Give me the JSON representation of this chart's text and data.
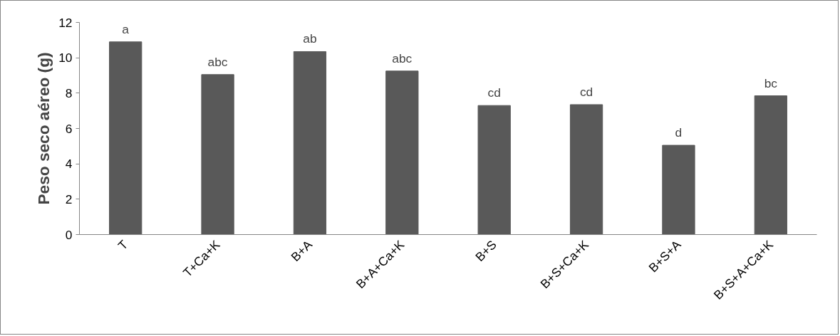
{
  "chart_data": {
    "type": "bar",
    "ylabel": "Peso seco aéreo (g)",
    "categories": [
      "T",
      "T+Ca+K",
      "B+A",
      "B+A+Ca+K",
      "B+S",
      "B+S+Ca+K",
      "B+S+A",
      "B+S+A+Ca+K"
    ],
    "values": [
      10.9,
      9.05,
      10.35,
      9.25,
      7.3,
      7.35,
      5.05,
      7.85
    ],
    "color": "#595959",
    "ylim": [
      0,
      12
    ],
    "yticks": [
      0,
      2,
      4,
      6,
      8,
      10,
      12
    ],
    "grid": false,
    "annotations": [
      {
        "text": "a",
        "x": "T",
        "y": 10.9
      },
      {
        "text": "abc",
        "x": "T+Ca+K",
        "y": 9.05
      },
      {
        "text": "ab",
        "x": "B+A",
        "y": 10.35
      },
      {
        "text": "abc",
        "x": "B+A+Ca+K",
        "y": 9.25
      },
      {
        "text": "cd",
        "x": "B+S",
        "y": 7.3
      },
      {
        "text": "cd",
        "x": "B+S+Ca+K",
        "y": 7.35
      },
      {
        "text": "d",
        "x": "B+S+A",
        "y": 5.05
      },
      {
        "text": "bc",
        "x": "B+S+A+Ca+K",
        "y": 7.85
      }
    ]
  }
}
